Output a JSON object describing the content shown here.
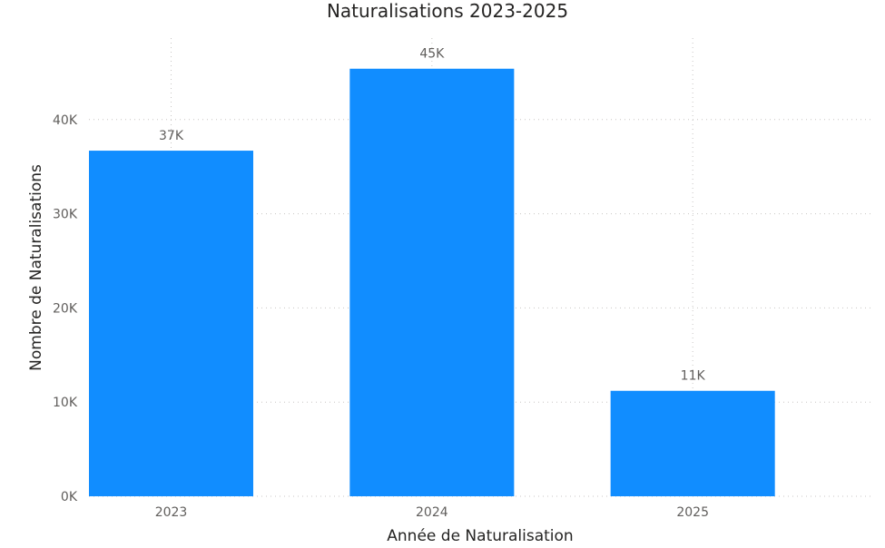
{
  "chart_data": {
    "type": "bar",
    "title": "Naturalisations 2023-2025",
    "xlabel": "Année de Naturalisation",
    "ylabel": "Nombre de Naturalisations",
    "categories": [
      "2023",
      "2024",
      "2025"
    ],
    "values": [
      36700,
      45400,
      11200
    ],
    "data_labels": [
      "37K",
      "45K",
      "11K"
    ],
    "ylim": [
      0,
      50000
    ],
    "yticks": [
      0,
      10000,
      20000,
      30000,
      40000
    ],
    "ytick_labels": [
      "0K",
      "10K",
      "20K",
      "30K",
      "40K"
    ],
    "grid": true,
    "bar_color": "#118DFF"
  }
}
